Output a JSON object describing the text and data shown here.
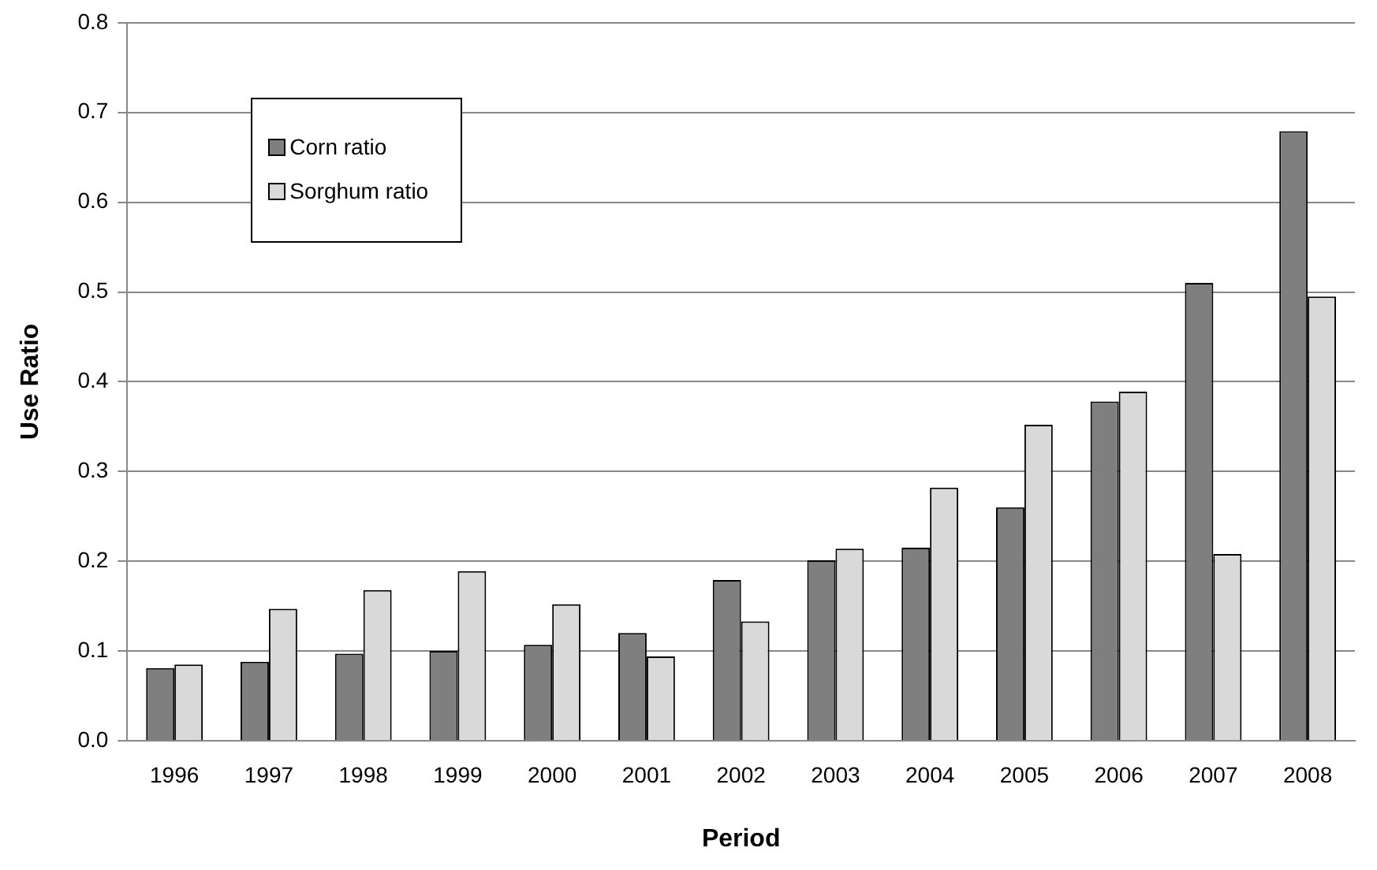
{
  "chart_data": {
    "type": "bar",
    "xlabel": "Period",
    "ylabel": "Use Ratio",
    "categories": [
      "1996",
      "1997",
      "1998",
      "1999",
      "2000",
      "2001",
      "2002",
      "2003",
      "2004",
      "2005",
      "2006",
      "2007",
      "2008"
    ],
    "series": [
      {
        "name": "Corn ratio",
        "color": "#7f7f7f",
        "values": [
          0.081,
          0.088,
          0.097,
          0.1,
          0.107,
          0.12,
          0.179,
          0.201,
          0.215,
          0.26,
          0.378,
          0.51,
          0.679
        ]
      },
      {
        "name": "Sorghum ratio",
        "color": "#d9d9d9",
        "values": [
          0.085,
          0.147,
          0.168,
          0.189,
          0.152,
          0.094,
          0.133,
          0.214,
          0.282,
          0.352,
          0.389,
          0.208,
          0.495
        ]
      }
    ],
    "ylim": [
      0,
      0.8
    ],
    "yticks": [
      {
        "value": 0,
        "label": "0.0"
      },
      {
        "value": 0.1,
        "label": "0.1"
      },
      {
        "value": 0.2,
        "label": "0.2"
      },
      {
        "value": 0.3,
        "label": "0.3"
      },
      {
        "value": 0.4,
        "label": "0.4"
      },
      {
        "value": 0.5,
        "label": "0.5"
      },
      {
        "value": 0.6,
        "label": "0.6"
      },
      {
        "value": 0.7,
        "label": "0.7"
      },
      {
        "value": 0.8,
        "label": "0.8"
      }
    ],
    "grid": "y",
    "legend": "top left"
  }
}
